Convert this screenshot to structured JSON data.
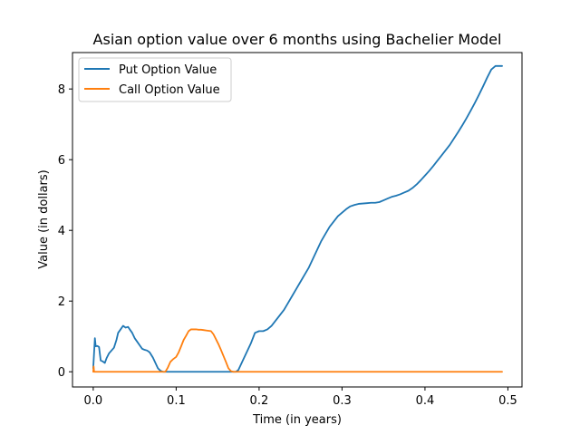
{
  "chart_data": {
    "type": "line",
    "title": "Asian option value over 6 months using Bachelier Model",
    "xlabel": "Time (in years)",
    "ylabel": "Value (in dollars)",
    "xlim": [
      -0.025,
      0.517
    ],
    "ylim": [
      -0.43,
      9.03
    ],
    "xticks": [
      0.0,
      0.1,
      0.2,
      0.3,
      0.4,
      0.5
    ],
    "xtick_labels": [
      "0.0",
      "0.1",
      "0.2",
      "0.3",
      "0.4",
      "0.5"
    ],
    "yticks": [
      0,
      2,
      4,
      6,
      8
    ],
    "ytick_labels": [
      "0",
      "2",
      "4",
      "6",
      "8"
    ],
    "grid": false,
    "legend_position": "upper-left",
    "series": [
      {
        "name": "Put Option Value",
        "color": "#1f77b4",
        "x": [
          0.0,
          0.002,
          0.003,
          0.005,
          0.007,
          0.009,
          0.011,
          0.014,
          0.016,
          0.019,
          0.022,
          0.025,
          0.028,
          0.03,
          0.033,
          0.036,
          0.039,
          0.042,
          0.044,
          0.047,
          0.05,
          0.053,
          0.056,
          0.059,
          0.062,
          0.065,
          0.068,
          0.072,
          0.075,
          0.078,
          0.081,
          0.084,
          0.087,
          0.088,
          0.1,
          0.12,
          0.14,
          0.16,
          0.172,
          0.175,
          0.18,
          0.185,
          0.19,
          0.195,
          0.2,
          0.205,
          0.21,
          0.215,
          0.22,
          0.225,
          0.23,
          0.235,
          0.24,
          0.245,
          0.25,
          0.255,
          0.26,
          0.265,
          0.27,
          0.275,
          0.28,
          0.285,
          0.29,
          0.295,
          0.3,
          0.305,
          0.31,
          0.315,
          0.32,
          0.325,
          0.33,
          0.335,
          0.34,
          0.345,
          0.35,
          0.355,
          0.36,
          0.365,
          0.37,
          0.375,
          0.38,
          0.385,
          0.39,
          0.395,
          0.4,
          0.405,
          0.41,
          0.415,
          0.42,
          0.425,
          0.43,
          0.435,
          0.44,
          0.445,
          0.45,
          0.455,
          0.46,
          0.465,
          0.47,
          0.475,
          0.48,
          0.485,
          0.49,
          0.493
        ],
        "y": [
          0.1,
          0.95,
          0.72,
          0.73,
          0.7,
          0.32,
          0.3,
          0.25,
          0.38,
          0.52,
          0.6,
          0.68,
          0.9,
          1.1,
          1.2,
          1.3,
          1.25,
          1.27,
          1.2,
          1.1,
          0.95,
          0.85,
          0.75,
          0.65,
          0.62,
          0.6,
          0.55,
          0.4,
          0.25,
          0.1,
          0.03,
          0.0,
          0.0,
          0.0,
          0.0,
          0.0,
          0.0,
          0.0,
          0.0,
          0.05,
          0.3,
          0.55,
          0.8,
          1.1,
          1.15,
          1.15,
          1.2,
          1.3,
          1.45,
          1.6,
          1.75,
          1.95,
          2.15,
          2.35,
          2.55,
          2.75,
          2.95,
          3.2,
          3.45,
          3.7,
          3.9,
          4.1,
          4.25,
          4.4,
          4.5,
          4.6,
          4.68,
          4.72,
          4.75,
          4.76,
          4.77,
          4.78,
          4.78,
          4.8,
          4.85,
          4.9,
          4.95,
          4.98,
          5.02,
          5.07,
          5.12,
          5.2,
          5.3,
          5.42,
          5.55,
          5.68,
          5.82,
          5.97,
          6.12,
          6.27,
          6.42,
          6.6,
          6.78,
          6.97,
          7.17,
          7.38,
          7.6,
          7.83,
          8.07,
          8.32,
          8.55,
          8.65,
          8.65,
          8.65
        ]
      },
      {
        "name": "Call Option Value",
        "color": "#ff7f0e",
        "x": [
          0.0,
          0.0005,
          0.001,
          0.005,
          0.02,
          0.04,
          0.06,
          0.08,
          0.087,
          0.09,
          0.093,
          0.096,
          0.1,
          0.103,
          0.106,
          0.109,
          0.112,
          0.115,
          0.118,
          0.121,
          0.124,
          0.127,
          0.13,
          0.133,
          0.136,
          0.139,
          0.142,
          0.145,
          0.148,
          0.151,
          0.154,
          0.157,
          0.16,
          0.163,
          0.166,
          0.169,
          0.172,
          0.175,
          0.2,
          0.25,
          0.3,
          0.35,
          0.4,
          0.45,
          0.493
        ],
        "y": [
          0.0,
          0.15,
          0.0,
          0.0,
          0.0,
          0.0,
          0.0,
          0.0,
          0.0,
          0.12,
          0.28,
          0.35,
          0.42,
          0.55,
          0.72,
          0.9,
          1.02,
          1.15,
          1.2,
          1.2,
          1.2,
          1.19,
          1.19,
          1.18,
          1.17,
          1.16,
          1.15,
          1.06,
          0.92,
          0.78,
          0.62,
          0.45,
          0.28,
          0.1,
          0.02,
          0.0,
          0.0,
          0.0,
          0.0,
          0.0,
          0.0,
          0.0,
          0.0,
          0.0,
          0.0
        ]
      }
    ]
  }
}
